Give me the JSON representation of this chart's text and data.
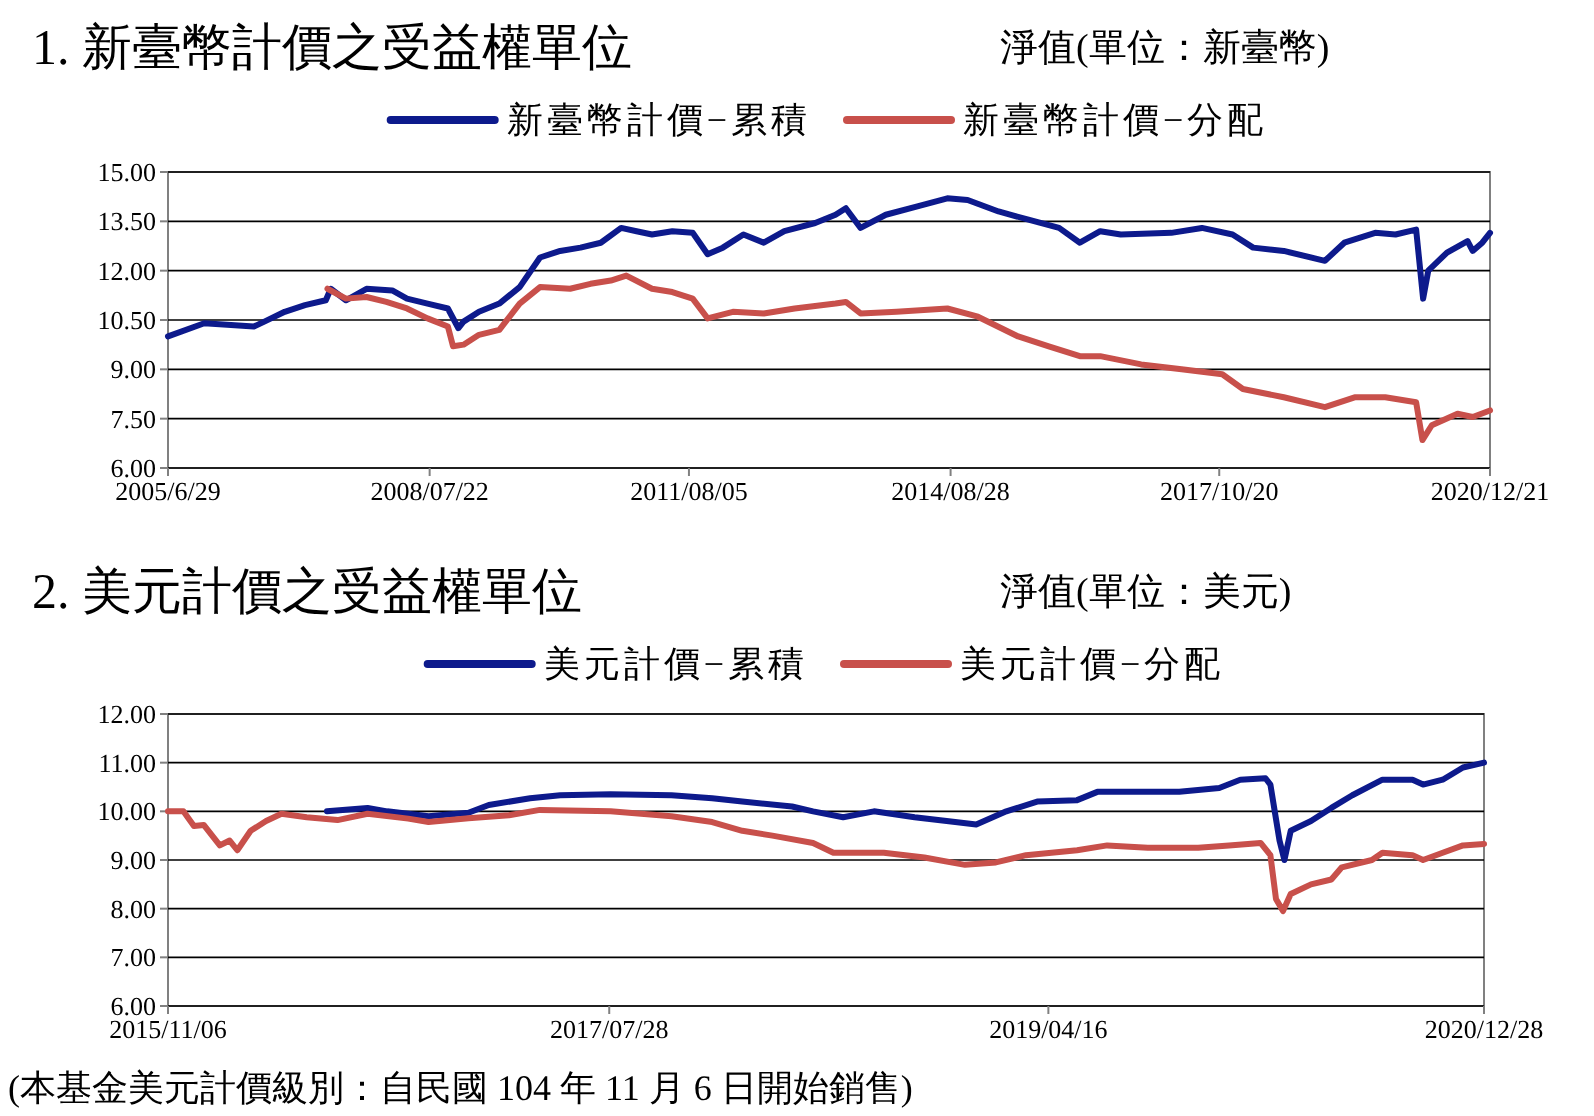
{
  "chart_data": [
    {
      "type": "line",
      "title": "1. 新臺幣計價之受益權單位",
      "subtitle": "淨值(單位：新臺幣)",
      "legend": "top",
      "grid": "y",
      "xlim": [
        "2005-06-29",
        "2020-12-21"
      ],
      "xticks": [
        {
          "value": "2005-06-29",
          "label": "2005/6/29"
        },
        {
          "value": "2008-07-22",
          "label": "2008/07/22"
        },
        {
          "value": "2011-08-05",
          "label": "2011/08/05"
        },
        {
          "value": "2014-08-28",
          "label": "2014/08/28"
        },
        {
          "value": "2017-10-20",
          "label": "2017/10/20"
        },
        {
          "value": "2020-12-21",
          "label": "2020/12/21"
        }
      ],
      "ylim": [
        6,
        15
      ],
      "yticks": [
        {
          "value": 6,
          "label": "6.00"
        },
        {
          "value": 7.5,
          "label": "7.50"
        },
        {
          "value": 9,
          "label": "9.00"
        },
        {
          "value": 10.5,
          "label": "10.50"
        },
        {
          "value": 12,
          "label": "12.00"
        },
        {
          "value": 13.5,
          "label": "13.50"
        },
        {
          "value": 15,
          "label": "15.00"
        }
      ],
      "series": [
        {
          "name": "新臺幣計價−累積",
          "color": "#0d1a8c",
          "x": [
            "2005-06-29",
            "2005-12-01",
            "2006-07-01",
            "2006-08-15",
            "2006-11-10",
            "2007-02-05",
            "2007-05-05",
            "2007-05-26",
            "2007-07-30",
            "2007-10-26",
            "2008-02-13",
            "2008-04-16",
            "2008-07-13",
            "2008-10-08",
            "2008-11-22",
            "2008-12-14",
            "2009-02-18",
            "2009-05-16",
            "2009-08-11",
            "2009-11-06",
            "2010-01-31",
            "2010-04-28",
            "2010-07-24",
            "2010-10-19",
            "2010-12-24",
            "2011-02-28",
            "2011-05-26",
            "2011-08-21",
            "2011-10-24",
            "2011-12-28",
            "2012-03-25",
            "2012-06-20",
            "2012-09-16",
            "2013-01-26",
            "2013-04-23",
            "2013-06-06",
            "2013-08-08",
            "2013-11-24",
            "2014-04-04",
            "2014-08-14",
            "2014-11-09",
            "2015-03-21",
            "2015-07-27",
            "2015-12-05",
            "2016-03-03",
            "2016-05-29",
            "2016-08-25",
            "2017-03-29",
            "2017-08-07",
            "2017-12-16",
            "2018-03-14",
            "2018-07-23",
            "2019-01-15",
            "2019-04-08",
            "2019-08-18",
            "2019-11-13",
            "2020-02-09",
            "2020-03-10",
            "2020-04-01",
            "2020-06-20",
            "2020-09-16",
            "2020-10-08",
            "2020-11-18",
            "2020-12-21"
          ],
          "values": [
            10.0,
            10.4,
            10.3,
            10.45,
            10.75,
            10.95,
            11.1,
            11.45,
            11.1,
            11.45,
            11.4,
            11.15,
            11.0,
            10.85,
            10.25,
            10.45,
            10.75,
            11.0,
            11.5,
            12.4,
            12.6,
            12.7,
            12.85,
            13.3,
            13.2,
            13.1,
            13.2,
            13.15,
            12.5,
            12.7,
            13.1,
            12.85,
            13.2,
            13.45,
            13.7,
            13.9,
            13.3,
            13.7,
            13.95,
            14.2,
            14.15,
            13.8,
            13.55,
            13.3,
            12.85,
            13.2,
            13.1,
            13.15,
            13.3,
            13.1,
            12.7,
            12.6,
            12.3,
            12.85,
            13.15,
            13.1,
            13.25,
            11.15,
            12.0,
            12.55,
            12.9,
            12.6,
            12.85,
            13.15
          ]
        },
        {
          "name": "新臺幣計價−分配",
          "color": "#c8504b",
          "x": [
            "2007-05-12",
            "2007-07-30",
            "2007-10-26",
            "2008-01-19",
            "2008-04-16",
            "2008-07-13",
            "2008-10-08",
            "2008-10-30",
            "2008-12-14",
            "2009-02-18",
            "2009-05-16",
            "2009-08-11",
            "2009-11-06",
            "2010-03-15",
            "2010-06-10",
            "2010-09-05",
            "2010-11-10",
            "2011-02-28",
            "2011-05-26",
            "2011-08-21",
            "2011-10-24",
            "2012-02-09",
            "2012-06-20",
            "2012-10-30",
            "2013-04-23",
            "2013-06-06",
            "2013-08-08",
            "2014-01-09",
            "2014-08-14",
            "2014-12-23",
            "2015-06-13",
            "2015-10-22",
            "2016-03-03",
            "2016-05-29",
            "2016-11-20",
            "2017-05-12",
            "2017-11-02",
            "2018-01-29",
            "2018-07-23",
            "2019-01-15",
            "2019-05-22",
            "2019-09-30",
            "2020-02-09",
            "2020-03-07",
            "2020-04-16",
            "2020-08-04",
            "2020-10-08",
            "2020-12-21"
          ],
          "values": [
            11.45,
            11.15,
            11.2,
            11.05,
            10.85,
            10.55,
            10.3,
            9.7,
            9.75,
            10.05,
            10.2,
            11.0,
            11.5,
            11.45,
            11.6,
            11.7,
            11.85,
            11.45,
            11.35,
            11.15,
            10.55,
            10.75,
            10.7,
            10.85,
            11.0,
            11.05,
            10.7,
            10.75,
            10.85,
            10.6,
            10.0,
            9.7,
            9.4,
            9.4,
            9.15,
            9.0,
            8.85,
            8.4,
            8.15,
            7.85,
            8.15,
            8.15,
            8.0,
            6.85,
            7.3,
            7.65,
            7.55,
            7.75
          ]
        }
      ]
    },
    {
      "type": "line",
      "title": "2. 美元計價之受益權單位",
      "subtitle": "淨值(單位：美元)",
      "legend": "top",
      "grid": "y",
      "annotations": [
        "(本基金美元計價級別：自民國 104 年 11 月 6 日開始銷售)"
      ],
      "xlim": [
        "2015-11-06",
        "2020-12-28"
      ],
      "xticks": [
        {
          "value": "2015-11-06",
          "label": "2015/11/06"
        },
        {
          "value": "2017-07-28",
          "label": "2017/07/28"
        },
        {
          "value": "2019-04-16",
          "label": "2019/04/16"
        },
        {
          "value": "2020-12-28",
          "label": "2020/12/28"
        }
      ],
      "ylim": [
        6,
        12
      ],
      "yticks": [
        {
          "value": 6,
          "label": "6.00"
        },
        {
          "value": 7,
          "label": "7.00"
        },
        {
          "value": 8,
          "label": "8.00"
        },
        {
          "value": 9,
          "label": "9.00"
        },
        {
          "value": 10,
          "label": "10.00"
        },
        {
          "value": 11,
          "label": "11.00"
        },
        {
          "value": 12,
          "label": "12.00"
        }
      ],
      "series": [
        {
          "name": "美元計價−累積",
          "color": "#0d1a8c",
          "x": [
            "2016-06-20",
            "2016-08-17",
            "2016-09-14",
            "2016-11-12",
            "2017-01-08",
            "2017-02-06",
            "2017-04-06",
            "2017-05-19",
            "2017-07-30",
            "2017-10-25",
            "2017-12-22",
            "2018-02-03",
            "2018-04-15",
            "2018-05-15",
            "2018-06-27",
            "2018-08-10",
            "2018-10-07",
            "2018-12-04",
            "2019-01-03",
            "2019-02-15",
            "2019-03-31",
            "2019-05-27",
            "2019-06-25",
            "2019-08-08",
            "2019-10-20",
            "2019-12-16",
            "2020-01-15",
            "2020-02-20",
            "2020-02-27",
            "2020-03-11",
            "2020-03-18",
            "2020-03-27",
            "2020-04-25",
            "2020-05-24",
            "2020-06-23",
            "2020-08-05",
            "2020-09-17",
            "2020-10-02",
            "2020-10-30",
            "2020-11-28",
            "2020-12-28"
          ],
          "values": [
            10.0,
            10.07,
            10.0,
            9.9,
            9.97,
            10.13,
            10.27,
            10.33,
            10.35,
            10.33,
            10.27,
            10.2,
            10.1,
            10.0,
            9.88,
            10.0,
            9.88,
            9.78,
            9.73,
            10.0,
            10.2,
            10.23,
            10.4,
            10.4,
            10.4,
            10.48,
            10.65,
            10.68,
            10.55,
            9.4,
            9.0,
            9.6,
            9.8,
            10.07,
            10.33,
            10.65,
            10.65,
            10.55,
            10.65,
            10.9,
            11.0
          ]
        },
        {
          "name": "美元計價−分配",
          "color": "#c8504b",
          "x": [
            "2015-11-06",
            "2015-11-28",
            "2015-12-13",
            "2015-12-27",
            "2016-01-19",
            "2016-02-02",
            "2016-02-13",
            "2016-03-03",
            "2016-03-25",
            "2016-04-16",
            "2016-05-22",
            "2016-07-05",
            "2016-08-17",
            "2016-10-14",
            "2016-11-12",
            "2017-01-08",
            "2017-03-07",
            "2017-04-20",
            "2017-07-30",
            "2017-10-25",
            "2017-12-22",
            "2018-02-03",
            "2018-03-18",
            "2018-05-15",
            "2018-06-13",
            "2018-08-24",
            "2018-10-21",
            "2018-12-18",
            "2019-01-31",
            "2019-03-15",
            "2019-05-27",
            "2019-07-09",
            "2019-09-05",
            "2019-11-16",
            "2019-12-30",
            "2020-02-13",
            "2020-02-27",
            "2020-03-06",
            "2020-03-16",
            "2020-03-27",
            "2020-04-25",
            "2020-05-24",
            "2020-06-08",
            "2020-07-21",
            "2020-08-05",
            "2020-09-17",
            "2020-10-02",
            "2020-10-30",
            "2020-11-28",
            "2020-12-28"
          ],
          "values": [
            10.0,
            10.0,
            9.7,
            9.72,
            9.3,
            9.4,
            9.2,
            9.6,
            9.8,
            9.95,
            9.88,
            9.82,
            9.95,
            9.85,
            9.78,
            9.86,
            9.92,
            10.03,
            10.0,
            9.9,
            9.78,
            9.6,
            9.5,
            9.35,
            9.15,
            9.15,
            9.05,
            8.9,
            8.95,
            9.1,
            9.2,
            9.3,
            9.25,
            9.25,
            9.3,
            9.35,
            9.1,
            8.2,
            7.95,
            8.3,
            8.5,
            8.6,
            8.85,
            9.0,
            9.15,
            9.1,
            9.0,
            9.15,
            9.3,
            9.33
          ]
        }
      ]
    }
  ]
}
